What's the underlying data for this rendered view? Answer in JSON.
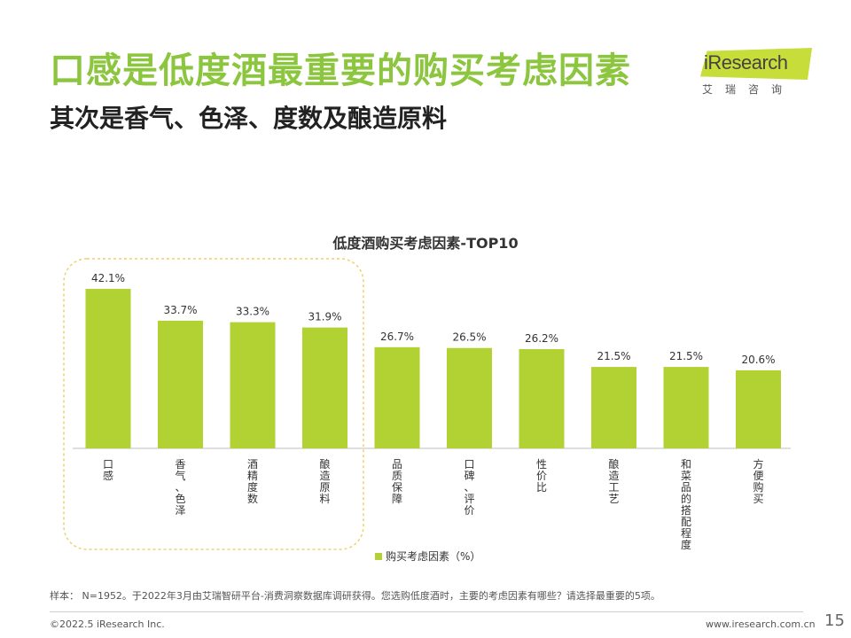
{
  "header": {
    "title": "口感是低度酒最重要的购买考虑因素",
    "subtitle": "其次是香气、色泽、度数及酿造原料"
  },
  "logo": {
    "brand": "iResearch",
    "cn": "艾瑞咨询"
  },
  "chart_data": {
    "type": "bar",
    "title": "低度酒购买考虑因素-TOP10",
    "categories": [
      "口感",
      "香气、色泽",
      "酒精度数",
      "酿造原料",
      "品质保障",
      "口碑、评价",
      "性价比",
      "酿造工艺",
      "和菜品的搭配程度",
      "方便购买"
    ],
    "series": [
      {
        "name": "购买考虑因素（%）",
        "values": [
          42.1,
          33.7,
          33.3,
          31.9,
          26.7,
          26.5,
          26.2,
          21.5,
          21.5,
          20.6
        ]
      }
    ],
    "value_labels": [
      "42.1%",
      "33.7%",
      "33.3%",
      "31.9%",
      "26.7%",
      "26.5%",
      "26.2%",
      "21.5%",
      "21.5%",
      "20.6%"
    ],
    "ylim": [
      0,
      42.1
    ],
    "grid": false,
    "legend": "bottom-center",
    "highlight_first_n": 4,
    "colors": {
      "bar": "#b2d234",
      "highlight_border": "#f0d16a"
    }
  },
  "footer": {
    "note": "样本： N=1952。于2022年3月由艾瑞智研平台-消费洞察数据库调研获得。您选购低度酒时，主要的考虑因素有哪些？请选择最重要的5项。",
    "copyright": "©2022.5 iResearch Inc.",
    "website": "www.iresearch.com.cn",
    "page": "15"
  }
}
